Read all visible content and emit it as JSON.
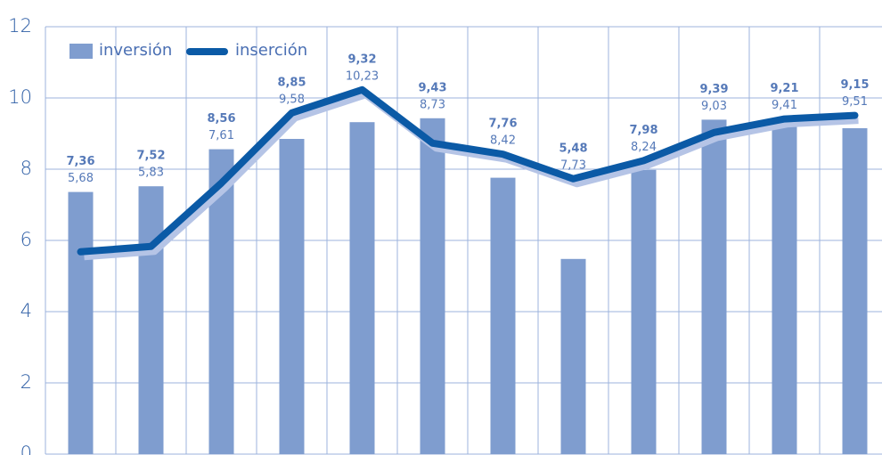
{
  "chart_data": {
    "type": "bar_line",
    "categories": [
      null,
      null,
      null,
      null,
      null,
      null,
      null,
      null,
      null,
      null,
      null,
      null
    ],
    "series": [
      {
        "name": "inversión",
        "type": "bar",
        "color": "#7f9dcf",
        "values": [
          7.36,
          7.52,
          8.56,
          8.85,
          9.32,
          9.43,
          7.76,
          5.48,
          7.98,
          9.39,
          9.21,
          9.15
        ],
        "value_labels": [
          "7,36",
          "7,52",
          "8,56",
          "8,85",
          "9,32",
          "9,43",
          "7,76",
          "5,48",
          "7,98",
          "9,39",
          "9,21",
          "9,15"
        ]
      },
      {
        "name": "inserción",
        "type": "line",
        "color": "#0b5aa6",
        "values": [
          5.68,
          5.83,
          7.61,
          9.58,
          10.23,
          8.73,
          8.42,
          7.73,
          8.24,
          9.03,
          9.41,
          9.51
        ],
        "value_labels": [
          "5,68",
          "5,83",
          "7,61",
          "9,58",
          "10,23",
          "8,73",
          "8,42",
          "7,73",
          "8,24",
          "9,03",
          "9,41",
          "9,51"
        ]
      }
    ],
    "ylim": [
      0,
      12
    ],
    "yticks": [
      0,
      2,
      4,
      6,
      8,
      10,
      12
    ],
    "grid": true,
    "legend": "upper left"
  }
}
